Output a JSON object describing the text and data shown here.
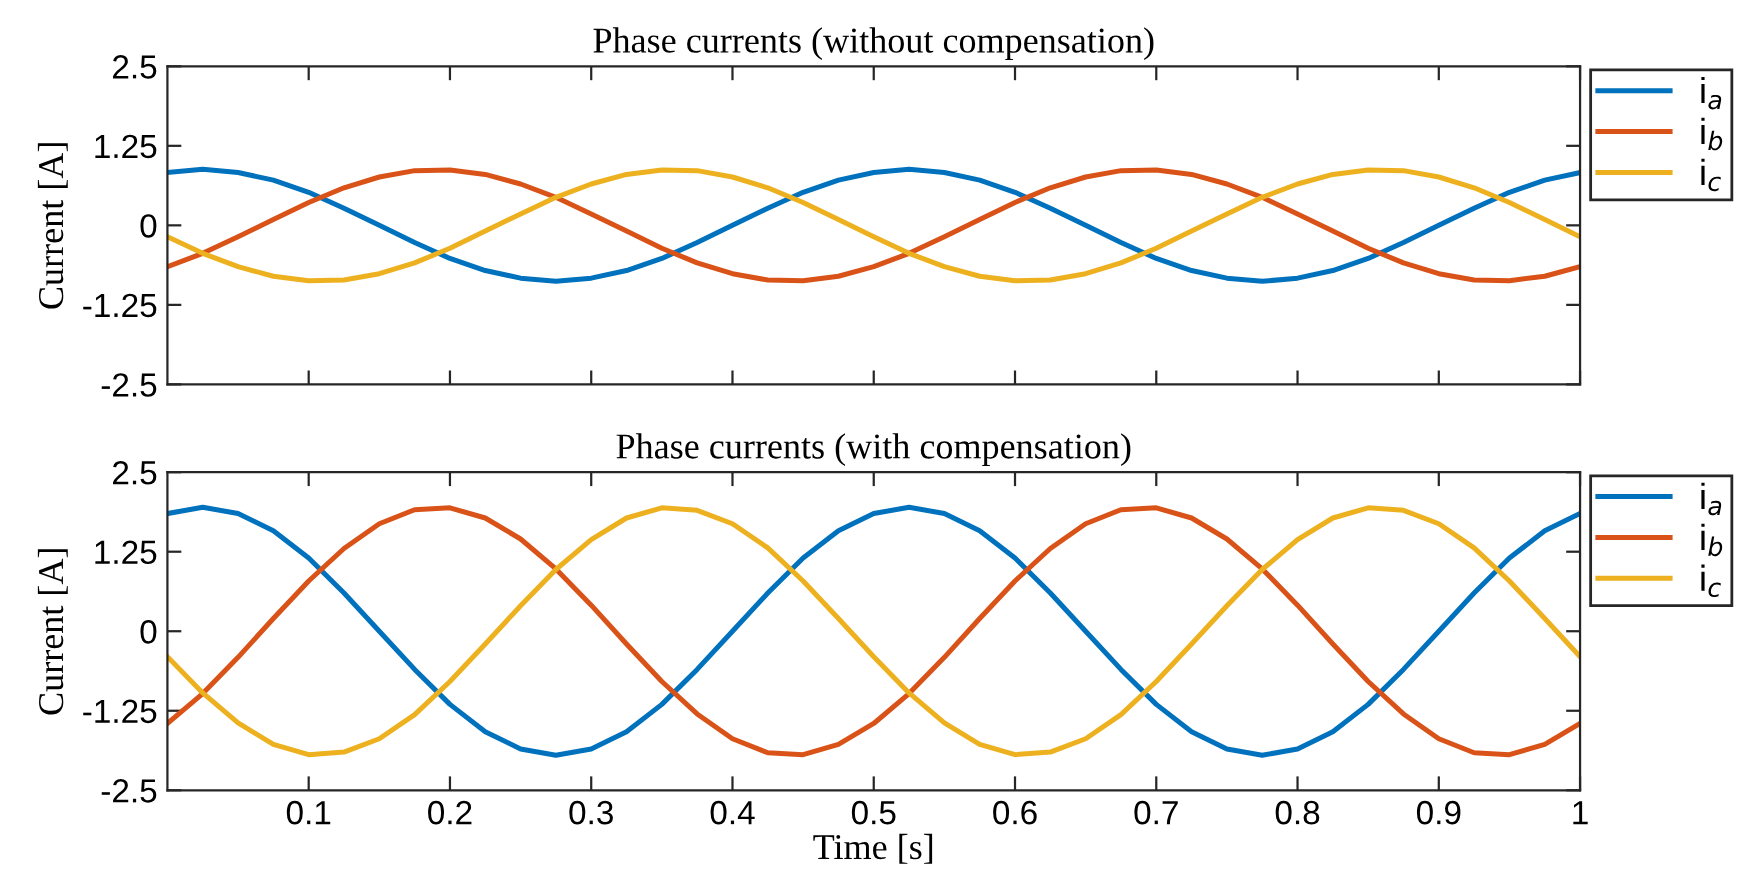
{
  "chart_data": [
    {
      "type": "line",
      "title": "Phase currents (without compensation)",
      "ylabel": "Current [A]",
      "legend": "top right",
      "tick_labels": "y",
      "x": [
        0,
        0.025,
        0.05,
        0.075,
        0.1,
        0.125,
        0.15,
        0.175,
        0.2,
        0.225,
        0.25,
        0.275,
        0.3,
        0.325,
        0.35,
        0.375,
        0.4,
        0.425,
        0.45,
        0.475,
        0.5,
        0.525,
        0.55,
        0.575,
        0.6,
        0.625,
        0.65,
        0.675,
        0.7,
        0.725,
        0.75,
        0.775,
        0.8,
        0.825,
        0.85,
        0.875,
        0.9,
        0.925,
        0.95,
        0.975,
        1
      ],
      "xlim": [
        0,
        1
      ],
      "xticks": [
        0.1,
        0.2,
        0.3,
        0.4,
        0.5,
        0.6,
        0.7,
        0.8,
        0.9,
        1
      ],
      "ylim": [
        -2.5,
        2.5
      ],
      "yticks": [
        -2.5,
        -1.25,
        0,
        1.25,
        2.5
      ],
      "series": [
        {
          "name": "i$_{a}$",
          "color": "#0072bd",
          "values": [
            0.83,
            0.88,
            0.83,
            0.71,
            0.52,
            0.27,
            0,
            -0.27,
            -0.52,
            -0.71,
            -0.83,
            -0.88,
            -0.83,
            -0.71,
            -0.52,
            -0.27,
            0,
            0.27,
            0.52,
            0.71,
            0.83,
            0.88,
            0.83,
            0.71,
            0.52,
            0.27,
            0,
            -0.27,
            -0.52,
            -0.71,
            -0.83,
            -0.88,
            -0.83,
            -0.71,
            -0.52,
            -0.27,
            0,
            0.27,
            0.52,
            0.71,
            0.83
          ]
        },
        {
          "name": "i$_{b}$",
          "color": "#d95319",
          "values": [
            -0.65,
            -0.44,
            -0.18,
            0.09,
            0.36,
            0.59,
            0.76,
            0.86,
            0.87,
            0.8,
            0.65,
            0.44,
            0.18,
            -0.09,
            -0.36,
            -0.59,
            -0.76,
            -0.86,
            -0.87,
            -0.8,
            -0.65,
            -0.44,
            -0.18,
            0.09,
            0.36,
            0.59,
            0.76,
            0.86,
            0.87,
            0.8,
            0.65,
            0.44,
            0.18,
            -0.09,
            -0.36,
            -0.59,
            -0.76,
            -0.86,
            -0.87,
            -0.8,
            -0.65
          ]
        },
        {
          "name": "i$_{c}$",
          "color": "#edb120",
          "values": [
            -0.18,
            -0.44,
            -0.65,
            -0.8,
            -0.87,
            -0.86,
            -0.76,
            -0.59,
            -0.36,
            -0.09,
            0.18,
            0.44,
            0.65,
            0.8,
            0.87,
            0.86,
            0.76,
            0.59,
            0.36,
            0.09,
            -0.18,
            -0.44,
            -0.65,
            -0.8,
            -0.87,
            -0.86,
            -0.76,
            -0.59,
            -0.36,
            -0.09,
            0.18,
            0.44,
            0.65,
            0.8,
            0.87,
            0.86,
            0.76,
            0.59,
            0.36,
            0.09,
            -0.18
          ]
        }
      ]
    },
    {
      "type": "line",
      "title": "Phase currents (with compensation)",
      "ylabel": "Current [A]",
      "xlabel": "Time [s]",
      "legend": "top right",
      "x": [
        0,
        0.025,
        0.05,
        0.075,
        0.1,
        0.125,
        0.15,
        0.175,
        0.2,
        0.225,
        0.25,
        0.275,
        0.3,
        0.325,
        0.35,
        0.375,
        0.4,
        0.425,
        0.45,
        0.475,
        0.5,
        0.525,
        0.55,
        0.575,
        0.6,
        0.625,
        0.65,
        0.675,
        0.7,
        0.725,
        0.75,
        0.775,
        0.8,
        0.825,
        0.85,
        0.875,
        0.9,
        0.925,
        0.95,
        0.975,
        1
      ],
      "xlim": [
        0,
        1
      ],
      "xticks": [
        0.1,
        0.2,
        0.3,
        0.4,
        0.5,
        0.6,
        0.7,
        0.8,
        0.9,
        1
      ],
      "ylim": [
        -2.5,
        2.5
      ],
      "yticks": [
        -2.5,
        -1.25,
        0,
        1.25,
        2.5
      ],
      "series": [
        {
          "name": "i$_{a}$",
          "color": "#0072bd",
          "values": [
            1.85,
            1.95,
            1.85,
            1.58,
            1.15,
            0.6,
            0,
            -0.6,
            -1.15,
            -1.58,
            -1.85,
            -1.95,
            -1.85,
            -1.58,
            -1.15,
            -0.6,
            0,
            0.6,
            1.15,
            1.58,
            1.85,
            1.95,
            1.85,
            1.58,
            1.15,
            0.6,
            0,
            -0.6,
            -1.15,
            -1.58,
            -1.85,
            -1.95,
            -1.85,
            -1.58,
            -1.15,
            -0.6,
            0,
            0.6,
            1.15,
            1.58,
            1.85
          ]
        },
        {
          "name": "i$_{b}$",
          "color": "#d95319",
          "values": [
            -1.45,
            -0.98,
            -0.41,
            0.2,
            0.79,
            1.3,
            1.69,
            1.91,
            1.94,
            1.78,
            1.45,
            0.98,
            0.41,
            -0.2,
            -0.79,
            -1.3,
            -1.69,
            -1.91,
            -1.94,
            -1.78,
            -1.45,
            -0.98,
            -0.41,
            0.2,
            0.79,
            1.3,
            1.69,
            1.91,
            1.94,
            1.78,
            1.45,
            0.98,
            0.41,
            -0.2,
            -0.79,
            -1.3,
            -1.69,
            -1.91,
            -1.94,
            -1.78,
            -1.45
          ]
        },
        {
          "name": "i$_{c}$",
          "color": "#edb120",
          "values": [
            -0.4,
            -0.97,
            -1.44,
            -1.78,
            -1.94,
            -1.9,
            -1.69,
            -1.31,
            -0.79,
            -0.2,
            0.4,
            0.97,
            1.44,
            1.78,
            1.94,
            1.9,
            1.69,
            1.31,
            0.79,
            0.2,
            -0.4,
            -0.97,
            -1.44,
            -1.78,
            -1.94,
            -1.9,
            -1.69,
            -1.31,
            -0.79,
            -0.2,
            0.4,
            0.97,
            1.44,
            1.78,
            1.94,
            1.9,
            1.69,
            1.31,
            0.79,
            0.2,
            -0.4
          ]
        }
      ]
    }
  ]
}
